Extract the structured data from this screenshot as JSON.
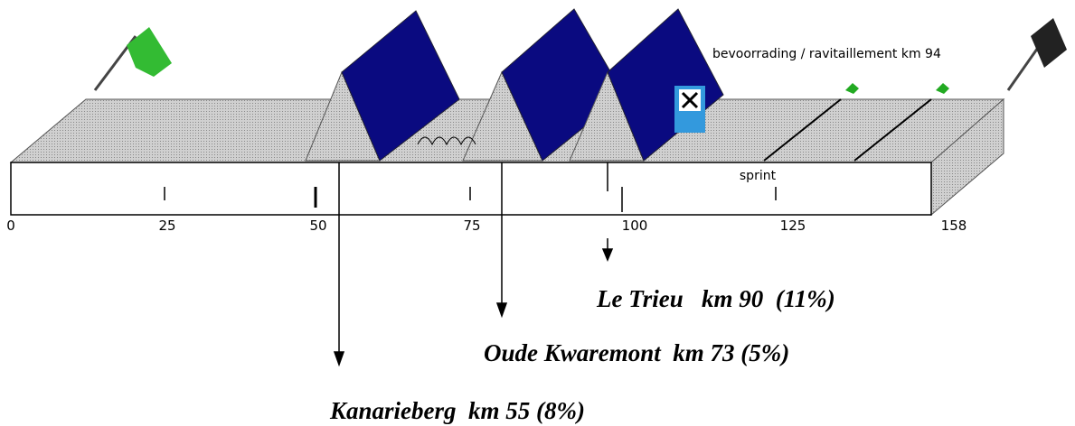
{
  "scale": {
    "ticks": [
      "0",
      "25",
      "50",
      "75",
      "100",
      "125",
      "158"
    ]
  },
  "labels": {
    "feed": "bevoorrading / ravitaillement km 94",
    "sprint": "sprint"
  },
  "climbs": [
    {
      "label": "Le Trieu   km 90  (11%)"
    },
    {
      "label": "Oude Kwaremont  km 73 (5%)"
    },
    {
      "label": "Kanarieberg  km 55 (8%)"
    }
  ]
}
